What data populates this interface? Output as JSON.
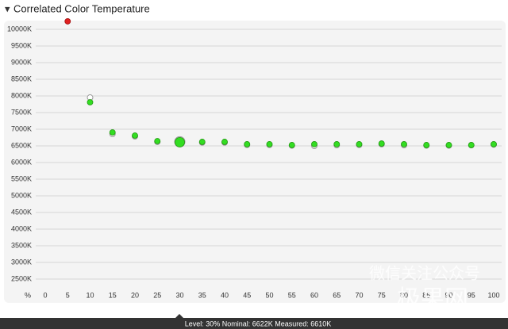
{
  "chart_data": {
    "type": "scatter",
    "title": "Correlated Color Temperature",
    "xlabel": "%",
    "x": [
      0,
      5,
      10,
      15,
      20,
      25,
      30,
      35,
      40,
      45,
      50,
      55,
      60,
      65,
      70,
      75,
      80,
      85,
      90,
      95,
      100
    ],
    "xlim": [
      0,
      100
    ],
    "xticks": [
      0,
      5,
      10,
      15,
      20,
      25,
      30,
      35,
      40,
      45,
      50,
      55,
      60,
      65,
      70,
      75,
      80,
      85,
      90,
      95,
      100
    ],
    "ylim": [
      2200,
      10200
    ],
    "yticks": [
      {
        "value": 2500,
        "label": "2500K"
      },
      {
        "value": 3000,
        "label": "3000K"
      },
      {
        "value": 3500,
        "label": "3500K"
      },
      {
        "value": 4000,
        "label": "4000K"
      },
      {
        "value": 4500,
        "label": "4500K"
      },
      {
        "value": 5000,
        "label": "5000K"
      },
      {
        "value": 5500,
        "label": "5500K"
      },
      {
        "value": 6000,
        "label": "6000K"
      },
      {
        "value": 6500,
        "label": "6500K"
      },
      {
        "value": 7000,
        "label": "7000K"
      },
      {
        "value": 7500,
        "label": "7500K"
      },
      {
        "value": 8000,
        "label": "8000K"
      },
      {
        "value": 8500,
        "label": "8500K"
      },
      {
        "value": 9000,
        "label": "9000K"
      },
      {
        "value": 9500,
        "label": "9500K"
      },
      {
        "value": 10000,
        "label": "10000K"
      }
    ],
    "grid": true,
    "above_range_color": "#e02020",
    "selected_x": 30,
    "series": [
      {
        "name": "Nominal",
        "color": "#ffffff",
        "values": [
          null,
          null,
          7952,
          6857,
          6786,
          6620,
          6622,
          6600,
          6600,
          6530,
          6530,
          6510,
          6500,
          6520,
          6530,
          6550,
          6520,
          6510,
          6510,
          6520,
          6540
        ]
      },
      {
        "name": "Measured",
        "color": "#33dd22",
        "values": [
          null,
          10240,
          7810,
          6905,
          6810,
          6643,
          6610,
          6620,
          6620,
          6550,
          6550,
          6525,
          6550,
          6550,
          6550,
          6570,
          6550,
          6525,
          6525,
          6525,
          6550
        ]
      }
    ],
    "status_bar": "Level: 30% Nominal: 6622K Measured: 6610K",
    "watermark": [
      "微信关注公众号",
      "极果网"
    ]
  }
}
